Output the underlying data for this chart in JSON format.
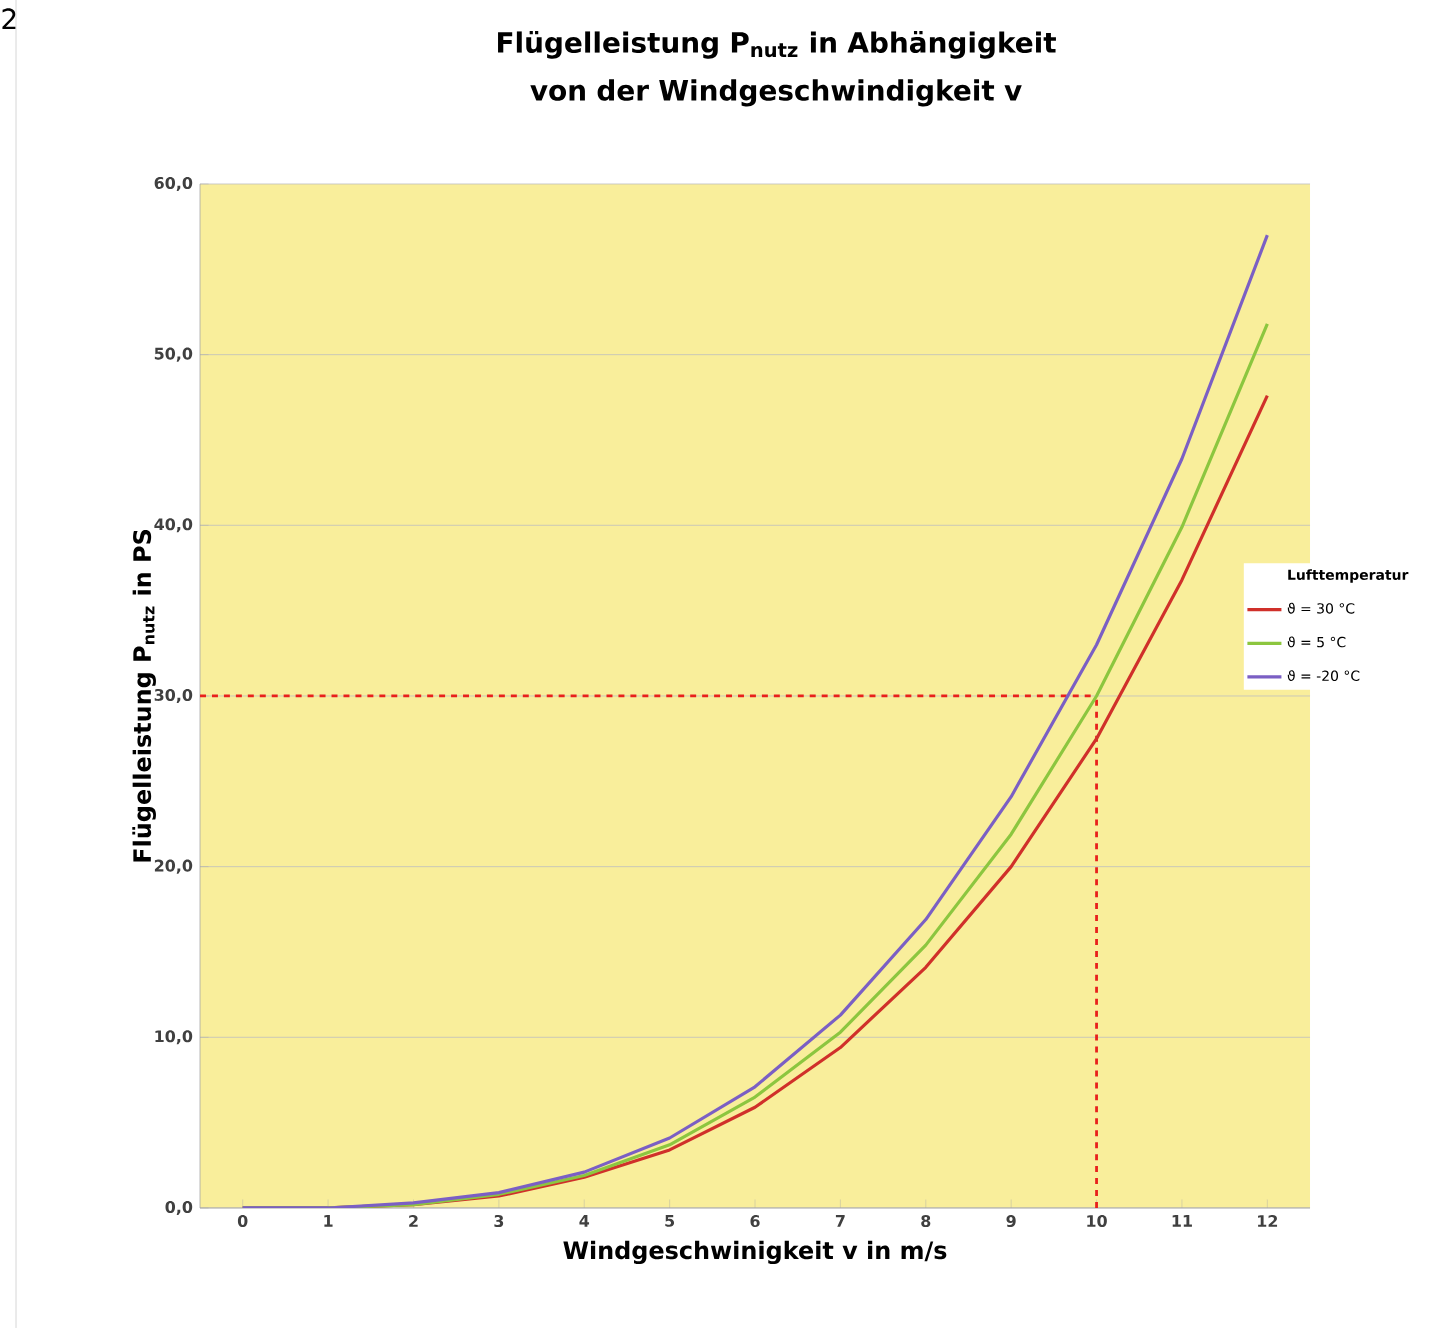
{
  "chart_data": {
    "type": "line",
    "title": "Flügelleistung P$_{nutz}$ in Abhängigkeit von der Windgeschwindigkeit v",
    "xlabel": "Windgeschwinigkeit v  in m/s",
    "ylabel": "Flügelleistung  P$_{nutz}$  in PS",
    "legend_title": "Lufttemperatur",
    "annotations": [
      "2"
    ],
    "x": [
      0,
      1,
      2,
      3,
      4,
      5,
      6,
      7,
      8,
      9,
      10,
      11,
      12
    ],
    "xlim": [
      -0.5,
      12.5
    ],
    "xticks": [
      0,
      1,
      2,
      3,
      4,
      5,
      6,
      7,
      8,
      9,
      10,
      11,
      12
    ],
    "ylim": [
      0,
      60
    ],
    "yticks": [
      {
        "value": 0,
        "label": "0,0"
      },
      {
        "value": 10,
        "label": "10,0"
      },
      {
        "value": 20,
        "label": "20,0"
      },
      {
        "value": 30,
        "label": "30,0"
      },
      {
        "value": 40,
        "label": "40,0"
      },
      {
        "value": 50,
        "label": "50,0"
      },
      {
        "value": 60,
        "label": "60,0"
      }
    ],
    "series": [
      {
        "name": "ϑ = 30 °C",
        "color": "#d0302a",
        "values": [
          0,
          0,
          0.2,
          0.7,
          1.8,
          3.4,
          5.9,
          9.4,
          14.1,
          20.0,
          27.5,
          36.8,
          47.6
        ]
      },
      {
        "name": "ϑ = 5 °C",
        "color": "#8cc63f",
        "values": [
          0,
          0,
          0.2,
          0.8,
          1.9,
          3.7,
          6.5,
          10.3,
          15.4,
          21.9,
          30.0,
          39.9,
          51.8
        ]
      },
      {
        "name": "ϑ = -20 °C",
        "color": "#7b5fc4",
        "values": [
          0,
          0,
          0.3,
          0.9,
          2.1,
          4.1,
          7.1,
          11.3,
          16.9,
          24.1,
          33.0,
          43.9,
          57.0
        ]
      }
    ],
    "ref_lines": [
      {
        "axis": "y",
        "value": 30,
        "color": "#e8201c",
        "line_style": "dashed"
      },
      {
        "axis": "x",
        "value": 10,
        "color": "#e8201c",
        "line_style": "dashed"
      }
    ],
    "grid": "y",
    "legend": "right",
    "marker": "none",
    "line_style": "solid"
  }
}
